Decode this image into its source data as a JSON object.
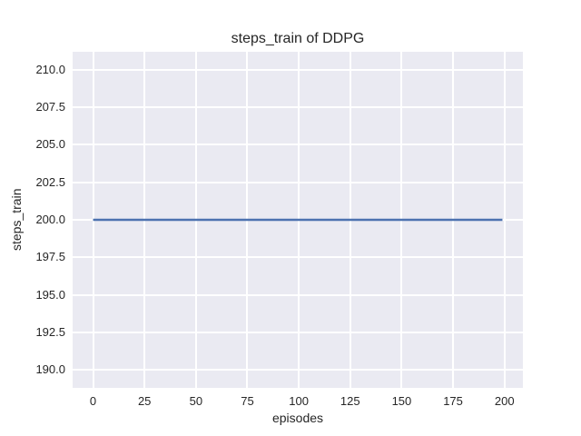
{
  "chart_data": {
    "type": "line",
    "title": "steps_train of DDPG",
    "xlabel": "episodes",
    "ylabel": "steps_train",
    "xlim": [
      -9.95,
      208.95
    ],
    "ylim": [
      188.8,
      211.2
    ],
    "grid": true,
    "legend": "none",
    "x_ticks": {
      "values": [
        0,
        25,
        50,
        75,
        100,
        125,
        150,
        175,
        200
      ],
      "labels": [
        "0",
        "25",
        "50",
        "75",
        "100",
        "125",
        "150",
        "175",
        "200"
      ]
    },
    "y_ticks": {
      "values": [
        190.0,
        192.5,
        195.0,
        197.5,
        200.0,
        202.5,
        205.0,
        207.5,
        210.0
      ],
      "labels": [
        "190.0",
        "192.5",
        "195.0",
        "197.5",
        "200.0",
        "202.5",
        "205.0",
        "207.5",
        "210.0"
      ]
    },
    "series": [
      {
        "name": "steps_train",
        "color": "#4C72B0",
        "line_width": 2.5,
        "x": [
          0,
          199
        ],
        "y": [
          200,
          200
        ]
      }
    ],
    "style": {
      "axes_bg": "#EAEAF2",
      "grid_color": "#FFFFFF",
      "text_color": "#262626",
      "figure_bg": "#FFFFFF"
    }
  }
}
